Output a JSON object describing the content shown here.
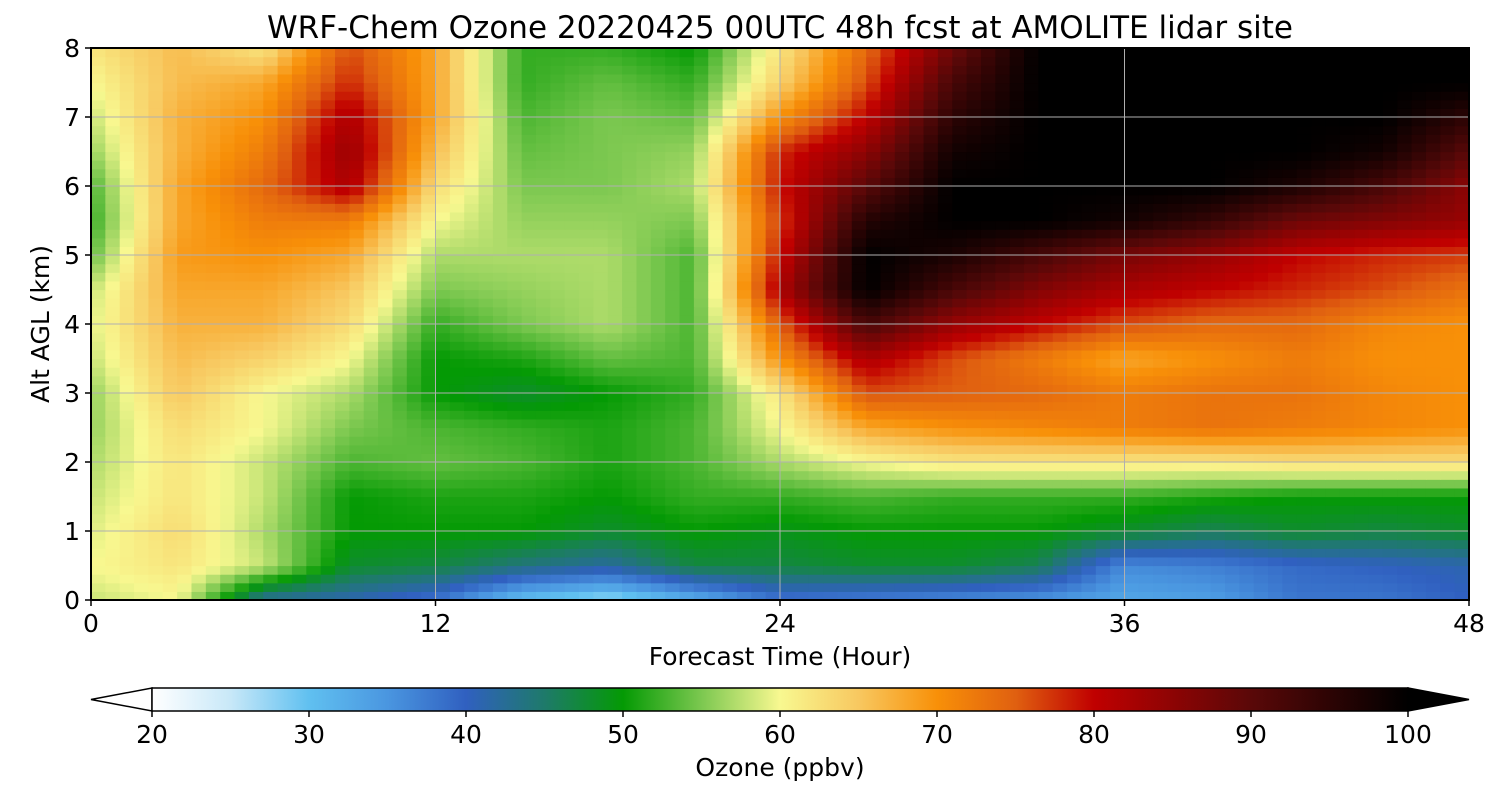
{
  "chart_data": {
    "type": "heatmap",
    "title": "WRF-Chem Ozone  20220425 00UTC 48h fcst at AMOLITE lidar site",
    "xlabel": "Forecast Time (Hour)",
    "ylabel": "Alt AGL (km)",
    "xlim": [
      0,
      48
    ],
    "ylim": [
      0,
      8
    ],
    "x_ticks": [
      "0",
      "12",
      "24",
      "36",
      "48"
    ],
    "y_ticks": [
      "0",
      "1",
      "2",
      "3",
      "4",
      "5",
      "6",
      "7",
      "8"
    ],
    "grid": true,
    "x": [
      0,
      3,
      6,
      9,
      12,
      15,
      18,
      21,
      24,
      27,
      30,
      33,
      36,
      39,
      42,
      45,
      48
    ],
    "y": [
      0,
      0.5,
      1,
      1.5,
      2,
      2.5,
      3,
      3.5,
      4,
      4.5,
      5,
      5.5,
      6,
      6.5,
      7,
      7.5,
      8
    ],
    "z": [
      [
        58,
        60,
        42,
        41,
        38,
        30,
        27,
        32,
        38,
        37,
        36,
        35,
        33,
        34,
        38,
        38,
        40
      ],
      [
        60,
        62,
        58,
        48,
        47,
        44,
        42,
        47,
        47,
        48,
        48,
        46,
        36,
        37,
        39,
        40,
        41
      ],
      [
        59,
        63,
        57,
        50,
        50,
        50,
        48,
        50,
        49,
        50,
        50,
        50,
        48,
        46,
        48,
        47,
        48
      ],
      [
        58,
        62,
        58,
        50,
        51,
        51,
        50,
        52,
        52,
        53,
        52,
        52,
        52,
        51,
        50,
        50,
        50
      ],
      [
        57,
        62,
        58,
        53,
        54,
        53,
        51,
        53,
        57,
        60,
        62,
        62,
        62,
        62,
        63,
        63,
        63
      ],
      [
        56,
        63,
        60,
        55,
        53,
        52,
        51,
        53,
        60,
        68,
        70,
        71,
        72,
        73,
        72,
        71,
        70
      ],
      [
        56,
        65,
        60,
        57,
        50,
        48,
        50,
        52,
        62,
        76,
        75,
        74,
        72,
        73,
        73,
        71,
        70
      ],
      [
        58,
        66,
        64,
        60,
        50,
        51,
        54,
        53,
        70,
        82,
        76,
        72,
        68,
        70,
        72,
        70,
        70
      ],
      [
        59,
        67,
        67,
        63,
        52,
        55,
        57,
        53,
        75,
        92,
        84,
        80,
        76,
        74,
        74,
        71,
        70
      ],
      [
        58,
        68,
        68,
        65,
        55,
        56,
        57,
        53,
        82,
        100,
        92,
        86,
        82,
        80,
        78,
        76,
        73
      ],
      [
        54,
        69,
        70,
        68,
        57,
        57,
        57,
        53,
        79,
        100,
        97,
        92,
        87,
        84,
        80,
        78,
        77
      ],
      [
        52,
        68,
        72,
        72,
        60,
        56,
        56,
        55,
        77,
        96,
        100,
        100,
        98,
        94,
        88,
        86,
        84
      ],
      [
        53,
        68,
        74,
        82,
        63,
        55,
        55,
        57,
        79,
        90,
        100,
        100,
        100,
        100,
        97,
        92,
        85
      ],
      [
        56,
        67,
        72,
        84,
        66,
        54,
        55,
        56,
        78,
        85,
        98,
        100,
        100,
        100,
        100,
        98,
        90
      ],
      [
        58,
        67,
        70,
        82,
        68,
        53,
        55,
        54,
        70,
        80,
        95,
        100,
        100,
        100,
        100,
        100,
        95
      ],
      [
        60,
        66,
        68,
        78,
        68,
        52,
        54,
        52,
        64,
        76,
        92,
        100,
        100,
        100,
        100,
        100,
        100
      ],
      [
        62,
        66,
        62,
        76,
        68,
        52,
        52,
        50,
        62,
        74,
        88,
        100,
        100,
        100,
        100,
        100,
        100
      ]
    ],
    "colorbar": {
      "label": "Ozone  (ppbv)",
      "min": 20,
      "max": 100,
      "ticks": [
        "20",
        "30",
        "40",
        "50",
        "60",
        "70",
        "80",
        "90",
        "100"
      ],
      "extend": "both",
      "stops": [
        {
          "v": 20,
          "c": "#ffffff"
        },
        {
          "v": 25,
          "c": "#c8e8f8"
        },
        {
          "v": 30,
          "c": "#60c0f0"
        },
        {
          "v": 35,
          "c": "#4a96e0"
        },
        {
          "v": 40,
          "c": "#3060c0"
        },
        {
          "v": 45,
          "c": "#1e7a6a"
        },
        {
          "v": 50,
          "c": "#049a04"
        },
        {
          "v": 55,
          "c": "#7cc850"
        },
        {
          "v": 60,
          "c": "#f8f890"
        },
        {
          "v": 65,
          "c": "#f8c860"
        },
        {
          "v": 70,
          "c": "#f89008"
        },
        {
          "v": 75,
          "c": "#e06010"
        },
        {
          "v": 80,
          "c": "#c00000"
        },
        {
          "v": 90,
          "c": "#5a0808"
        },
        {
          "v": 100,
          "c": "#000000"
        }
      ]
    }
  }
}
